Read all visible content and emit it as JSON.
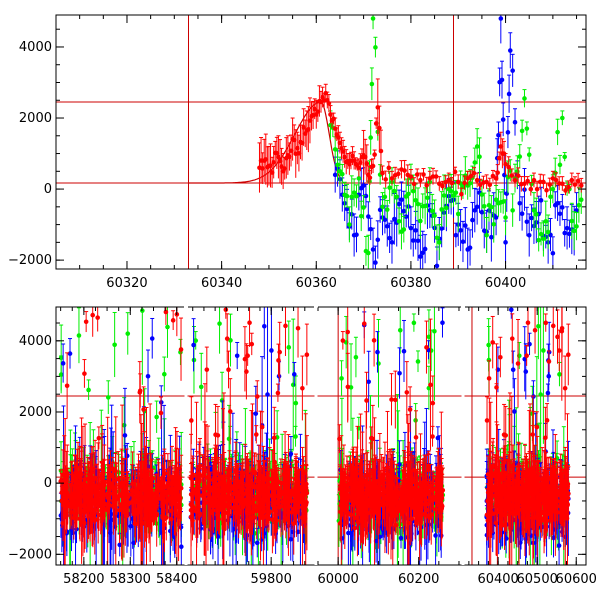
{
  "colors": {
    "red": "#ff0000",
    "green": "#00ee00",
    "blue": "#0000ff",
    "guide": "#cc0000",
    "axis": "#000000"
  },
  "chart_data": [
    {
      "type": "scatter",
      "title": "",
      "xlabel": "",
      "ylabel": "",
      "xlim": [
        60305,
        60417
      ],
      "ylim": [
        -2250,
        4900
      ],
      "x_ticks": [
        60320,
        60340,
        60360,
        60380,
        60400
      ],
      "x_tick_labels": [
        "60320",
        "60340",
        "60360",
        "60380",
        "60400"
      ],
      "y_ticks": [
        -2000,
        0,
        2000,
        4000
      ],
      "y_tick_labels": [
        "−2000",
        "0",
        "2000",
        "4000"
      ],
      "grid": false,
      "error_bars": true,
      "reference_lines": {
        "horizontal": [
          2450,
          170
        ],
        "vertical": [
          60333,
          60389
        ]
      },
      "model_curve": {
        "shape": "gaussian_rise",
        "baseline": 170,
        "peak": 2450,
        "peak_x": 60361,
        "sigma": 5.5,
        "x_range": [
          60333,
          60365
        ]
      },
      "series": [
        {
          "color": "red",
          "points": [
            [
              60348,
              600,
              700
            ],
            [
              60349,
              800,
              600
            ],
            [
              60350,
              650,
              550
            ],
            [
              60351,
              750,
              450
            ],
            [
              60352,
              900,
              600
            ],
            [
              60353,
              500,
              500
            ],
            [
              60354,
              950,
              550
            ],
            [
              60355,
              1400,
              600
            ],
            [
              60356,
              1150,
              450
            ],
            [
              60357,
              1300,
              500
            ],
            [
              60358,
              1650,
              550
            ],
            [
              60359,
              2050,
              400
            ],
            [
              60360,
              2100,
              400
            ],
            [
              60361,
              2450,
              300
            ],
            [
              60362,
              2700,
              250
            ],
            [
              60363,
              2100,
              250
            ],
            [
              60364,
              1700,
              300
            ],
            [
              60365,
              1300,
              300
            ],
            [
              60366,
              900,
              300
            ],
            [
              60367,
              700,
              300
            ],
            [
              60368,
              800,
              250
            ],
            [
              60369,
              600,
              250
            ],
            [
              60370,
              950,
              700
            ],
            [
              60371,
              400,
              250
            ],
            [
              60372,
              650,
              200
            ],
            [
              60373,
              2300,
              800
            ],
            [
              60374,
              450,
              200
            ],
            [
              60376,
              300,
              200
            ],
            [
              60378,
              550,
              250
            ],
            [
              60380,
              350,
              200
            ],
            [
              60382,
              250,
              200
            ],
            [
              60384,
              300,
              200
            ],
            [
              60386,
              150,
              200
            ],
            [
              60388,
              250,
              200
            ],
            [
              60390,
              200,
              200
            ],
            [
              60392,
              300,
              200
            ],
            [
              60394,
              250,
              200
            ],
            [
              60396,
              200,
              200
            ],
            [
              60398,
              300,
              200
            ],
            [
              60399,
              1200,
              400
            ],
            [
              60400,
              700,
              300
            ],
            [
              60402,
              250,
              200
            ],
            [
              60404,
              150,
              200
            ],
            [
              60406,
              250,
              200
            ],
            [
              60408,
              200,
              200
            ],
            [
              60410,
              300,
              200
            ],
            [
              60412,
              150,
              200
            ],
            [
              60414,
              250,
              200
            ],
            [
              60416,
              100,
              200
            ]
          ]
        },
        {
          "color": "green",
          "points": [
            [
              60363,
              1800,
              400
            ],
            [
              60365,
              500,
              400
            ],
            [
              60367,
              -1000,
              500
            ],
            [
              60369,
              300,
              400
            ],
            [
              60371,
              -1800,
              500
            ],
            [
              60372,
              4800,
              300
            ],
            [
              60374,
              -500,
              400
            ],
            [
              60376,
              200,
              400
            ],
            [
              60378,
              -1200,
              500
            ],
            [
              60380,
              300,
              400
            ],
            [
              60382,
              -900,
              500
            ],
            [
              60384,
              200,
              400
            ],
            [
              60386,
              -1500,
              500
            ],
            [
              60388,
              0,
              400
            ],
            [
              60390,
              -700,
              500
            ],
            [
              60392,
              100,
              400
            ],
            [
              60394,
              1200,
              500
            ],
            [
              60396,
              -1300,
              500
            ],
            [
              60398,
              -300,
              400
            ],
            [
              60400,
              -800,
              500
            ],
            [
              60402,
              300,
              400
            ],
            [
              60404,
              2550,
              250
            ],
            [
              60406,
              -600,
              500
            ],
            [
              60408,
              -1400,
              500
            ],
            [
              60410,
              0,
              400
            ],
            [
              60412,
              2000,
              200
            ],
            [
              60414,
              -900,
              500
            ],
            [
              60416,
              -300,
              400
            ]
          ]
        },
        {
          "color": "blue",
          "points": [
            [
              60364,
              400,
              500
            ],
            [
              60366,
              -400,
              500
            ],
            [
              60368,
              -1300,
              600
            ],
            [
              60370,
              100,
              500
            ],
            [
              60372,
              -1700,
              600
            ],
            [
              60374,
              -800,
              500
            ],
            [
              60376,
              -1500,
              600
            ],
            [
              60378,
              -300,
              500
            ],
            [
              60380,
              -1100,
              600
            ],
            [
              60382,
              -1900,
              600
            ],
            [
              60384,
              -600,
              500
            ],
            [
              60386,
              -1400,
              600
            ],
            [
              60388,
              -200,
              500
            ],
            [
              60390,
              -1000,
              600
            ],
            [
              60392,
              -1700,
              600
            ],
            [
              60394,
              -500,
              500
            ],
            [
              60396,
              -1200,
              600
            ],
            [
              60398,
              -800,
              500
            ],
            [
              60399,
              4800,
              700
            ],
            [
              60400,
              -1500,
              600
            ],
            [
              60401,
              3900,
              500
            ],
            [
              60403,
              -400,
              500
            ],
            [
              60405,
              -1300,
              600
            ],
            [
              60407,
              -700,
              500
            ],
            [
              60409,
              -1500,
              600
            ],
            [
              60411,
              -400,
              500
            ],
            [
              60413,
              -1100,
              600
            ],
            [
              60415,
              -600,
              500
            ]
          ]
        }
      ]
    },
    {
      "type": "scatter",
      "title": "",
      "xlabel": "",
      "ylabel": "",
      "broken_axis": true,
      "segments": [
        {
          "xlim": [
            58140,
            58420
          ],
          "x_ticks": [
            58200,
            58300,
            58400
          ],
          "x_tick_labels": [
            "58200",
            "58300",
            "58400"
          ],
          "data_x": [
            58150,
            58410
          ]
        },
        {
          "xlim": [
            59610,
            59900
          ],
          "x_ticks": [
            59800
          ],
          "x_tick_labels": [
            "59800"
          ],
          "data_x": [
            59620,
            59880
          ]
        },
        {
          "xlim": [
            59945,
            60310
          ],
          "x_ticks": [
            60000,
            60200
          ],
          "x_tick_labels": [
            "60000",
            "60200"
          ],
          "data_x": [
            60000,
            60260
          ]
        },
        {
          "xlim": [
            60310,
            60625
          ],
          "x_ticks": [
            60400,
            60500,
            60600
          ],
          "x_tick_labels": [
            "60400",
            "60500",
            "60600"
          ],
          "data_x": [
            60370,
            60580
          ]
        }
      ],
      "ylim": [
        -2300,
        4950
      ],
      "y_ticks": [
        -2000,
        0,
        2000,
        4000
      ],
      "y_tick_labels": [
        "−2000",
        "0",
        "2000",
        "4000"
      ],
      "grid": false,
      "error_bars": true,
      "reference_lines": {
        "horizontal": [
          2450,
          170
        ],
        "vertical": [
          60000,
          60333
        ]
      },
      "series": [
        {
          "color": "red",
          "typical_range": [
            -1500,
            800
          ],
          "max_outlier": 4900
        },
        {
          "color": "green",
          "typical_range": [
            -1800,
            1000
          ],
          "max_outlier": 4900
        },
        {
          "color": "blue",
          "typical_range": [
            -2300,
            1200
          ],
          "max_outlier": 4900
        }
      ]
    }
  ]
}
